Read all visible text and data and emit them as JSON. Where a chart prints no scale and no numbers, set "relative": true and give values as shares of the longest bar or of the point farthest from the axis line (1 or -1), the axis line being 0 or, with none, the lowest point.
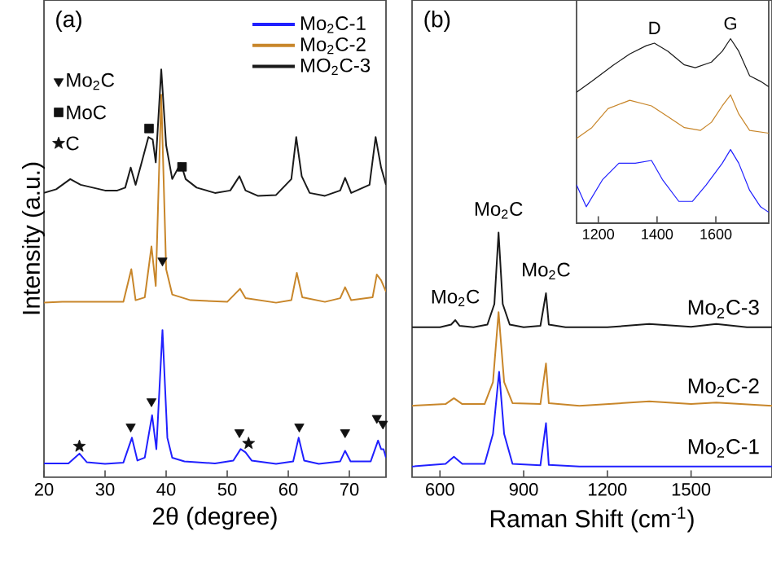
{
  "chart_data": [
    {
      "type": "line",
      "relative": true,
      "xlabel": "2θ (degree)",
      "ylabel": "Intensity (a.u.)",
      "xlim": [
        20,
        76
      ],
      "xticks": [
        20,
        30,
        40,
        50,
        60,
        70
      ],
      "legend": "top right",
      "annotations": [
        "(a)"
      ],
      "series": [
        {
          "name": "Mo$_{2}$C-1",
          "color": "#2020ff",
          "x": [
            20,
            24,
            25.8,
            27,
            30,
            33,
            34.4,
            35.3,
            36.5,
            37.7,
            38.4,
            39.4,
            40.2,
            41,
            43,
            48,
            51,
            52.2,
            53,
            54,
            58,
            60.8,
            61.7,
            62.6,
            65,
            68.5,
            69.3,
            70.2,
            73.5,
            74.7,
            75.2,
            75.6,
            76
          ],
          "values": [
            0.034,
            0.034,
            0.058,
            0.037,
            0.033,
            0.036,
            0.097,
            0.041,
            0.048,
            0.152,
            0.069,
            0.361,
            0.097,
            0.048,
            0.039,
            0.034,
            0.041,
            0.069,
            0.061,
            0.041,
            0.033,
            0.039,
            0.097,
            0.041,
            0.033,
            0.039,
            0.065,
            0.039,
            0.039,
            0.09,
            0.069,
            0.069,
            0.048
          ]
        },
        {
          "name": "Mo$_{2}$C-2",
          "color": "#c8862a",
          "x": [
            20,
            23,
            28,
            33,
            34.3,
            35,
            36.5,
            37.6,
            38.3,
            39.2,
            40,
            41,
            44,
            50,
            52.1,
            53,
            58,
            60.5,
            61.4,
            62.3,
            66,
            68.5,
            69.3,
            70.3,
            73.8,
            74.5,
            75.2,
            76
          ],
          "values": [
            0.428,
            0.43,
            0.43,
            0.43,
            0.51,
            0.434,
            0.441,
            0.566,
            0.469,
            0.938,
            0.51,
            0.448,
            0.434,
            0.43,
            0.462,
            0.439,
            0.428,
            0.434,
            0.501,
            0.441,
            0.43,
            0.439,
            0.466,
            0.434,
            0.441,
            0.497,
            0.483,
            0.455
          ]
        },
        {
          "name": "MO$_{2}$C-3",
          "color": "#1a1a1a",
          "x": [
            20,
            22,
            24.3,
            26,
            28,
            30,
            32,
            33.3,
            34.2,
            35,
            36,
            37.1,
            37.8,
            38.3,
            39.2,
            40,
            41,
            42.4,
            43.2,
            45,
            48,
            50.5,
            52,
            53,
            55,
            58,
            60.5,
            61.3,
            62.2,
            63.5,
            66,
            68.5,
            69.3,
            70.3,
            73.3,
            74.3,
            75.2,
            76
          ],
          "values": [
            0.697,
            0.706,
            0.731,
            0.717,
            0.71,
            0.703,
            0.703,
            0.71,
            0.759,
            0.717,
            0.772,
            0.834,
            0.828,
            0.772,
            1,
            0.814,
            0.731,
            0.77,
            0.731,
            0.71,
            0.697,
            0.703,
            0.738,
            0.703,
            0.69,
            0.692,
            0.731,
            0.834,
            0.738,
            0.697,
            0.69,
            0.703,
            0.734,
            0.697,
            0.717,
            0.834,
            0.759,
            0.717
          ]
        },
        {
          "type": "scatter",
          "marker": "triangle",
          "name": "Mo$_{2}$C",
          "color": "#111111",
          "x": [
            34.2,
            37.6,
            39.4,
            52.0,
            61.8,
            69.3,
            74.5,
            75.5
          ],
          "values": [
            0.124,
            0.186,
            0.531,
            0.11,
            0.124,
            0.11,
            0.145,
            0.131
          ]
        },
        {
          "type": "scatter",
          "marker": "square",
          "name": "MoC",
          "color": "#111111",
          "x": [
            37.2,
            42.6
          ],
          "values": [
            0.855,
            0.761
          ]
        },
        {
          "type": "scatter",
          "marker": "star",
          "name": "C",
          "color": "#111111",
          "x": [
            25.8,
            53.5
          ],
          "values": [
            0.076,
            0.083
          ]
        }
      ]
    },
    {
      "type": "line",
      "relative": true,
      "xlabel": "Raman Shift (cm$^{-1}$)",
      "xlim": [
        500,
        1790
      ],
      "xticks": [
        600,
        900,
        1200,
        1500
      ],
      "annotations": [
        "(b)",
        {
          "text": "Mo$_{2}$C",
          "x": 655,
          "y": 0.642
        },
        {
          "text": "Mo$_{2}$C",
          "x": 810,
          "y": 1
        },
        {
          "text": "Mo$_{2}$C",
          "x": 980,
          "y": 0.752
        }
      ],
      "series": [
        {
          "name": "Mo$_{2}$C-3",
          "color": "#1a1a1a",
          "x": [
            500,
            600,
            640,
            655,
            670,
            720,
            770,
            795,
            810,
            825,
            850,
            900,
            960,
            980,
            990,
            1050,
            1200,
            1350,
            1500,
            1590,
            1700,
            1790
          ],
          "values": [
            0.613,
            0.613,
            0.624,
            0.642,
            0.619,
            0.613,
            0.624,
            0.708,
            1,
            0.708,
            0.624,
            0.613,
            0.619,
            0.752,
            0.624,
            0.613,
            0.613,
            0.626,
            0.615,
            0.626,
            0.613,
            0.613
          ]
        },
        {
          "name": "Mo$_{2}$C-2",
          "color": "#c8862a",
          "x": [
            500,
            620,
            650,
            680,
            760,
            790,
            810,
            830,
            860,
            960,
            980,
            990,
            1100,
            1350,
            1500,
            1590,
            1790
          ],
          "values": [
            0.292,
            0.299,
            0.323,
            0.299,
            0.299,
            0.389,
            0.675,
            0.389,
            0.303,
            0.299,
            0.465,
            0.303,
            0.292,
            0.31,
            0.299,
            0.305,
            0.292
          ]
        },
        {
          "name": "Mo$_{2}$C-1",
          "color": "#2020ff",
          "x": [
            500,
            620,
            650,
            680,
            760,
            790,
            812,
            830,
            860,
            960,
            980,
            990,
            1100,
            1790
          ],
          "values": [
            0.044,
            0.055,
            0.084,
            0.055,
            0.055,
            0.177,
            0.431,
            0.177,
            0.055,
            0.049,
            0.221,
            0.051,
            0.044,
            0.044
          ]
        }
      ]
    },
    {
      "type": "line",
      "relative": true,
      "xlim": [
        1126,
        1780
      ],
      "xticks": [
        1200,
        1400,
        1600
      ],
      "annotations": [
        {
          "text": "D",
          "x": 1391,
          "y": 0.976
        },
        {
          "text": "G",
          "x": 1650,
          "y": 1
        }
      ],
      "series": [
        {
          "color": "#1a1a1a",
          "x": [
            1126,
            1178,
            1252,
            1307,
            1363,
            1391,
            1437,
            1493,
            1530,
            1585,
            1622,
            1650,
            1678,
            1715,
            1752,
            1780
          ],
          "values": [
            0.71,
            0.769,
            0.858,
            0.917,
            0.962,
            0.976,
            0.932,
            0.858,
            0.843,
            0.873,
            0.932,
            1,
            0.932,
            0.799,
            0.769,
            0.74
          ]
        },
        {
          "color": "#c8862a",
          "x": [
            1126,
            1178,
            1233,
            1307,
            1381,
            1437,
            1493,
            1548,
            1585,
            1622,
            1650,
            1678,
            1715,
            1780
          ],
          "values": [
            0.459,
            0.518,
            0.621,
            0.666,
            0.636,
            0.577,
            0.518,
            0.503,
            0.547,
            0.636,
            0.695,
            0.592,
            0.503,
            0.488
          ]
        },
        {
          "color": "#2020ff",
          "x": [
            1126,
            1159,
            1215,
            1270,
            1326,
            1381,
            1418,
            1474,
            1520,
            1567,
            1622,
            1650,
            1678,
            1715,
            1752,
            1780
          ],
          "values": [
            0.207,
            0.089,
            0.237,
            0.325,
            0.325,
            0.34,
            0.237,
            0.118,
            0.118,
            0.207,
            0.325,
            0.399,
            0.325,
            0.178,
            0.089,
            0.059
          ]
        }
      ]
    }
  ]
}
